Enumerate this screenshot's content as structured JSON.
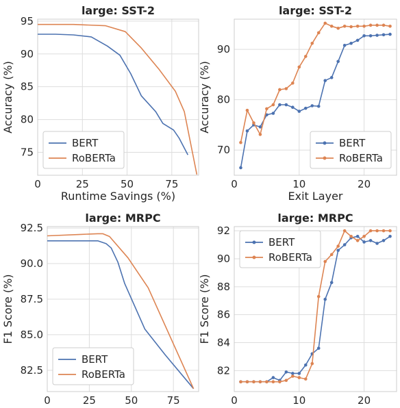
{
  "colors": {
    "bert": "#4c72b0",
    "roberta": "#dd8452",
    "grid": "#dddddd"
  },
  "chart_data": [
    {
      "id": "p1",
      "type": "line",
      "title": "large: SST-2",
      "xlabel": "Runtime Savings (%)",
      "ylabel": "Accuracy (%)",
      "xlim": [
        0,
        90
      ],
      "ylim": [
        71.5,
        95.3
      ],
      "xticks": [
        0,
        25,
        50,
        75
      ],
      "yticks": [
        75,
        80,
        85,
        90,
        95
      ],
      "markers": false,
      "legend": "lower-left",
      "series": [
        {
          "name": "BERT",
          "color": "#4c72b0",
          "x": [
            0,
            10,
            20,
            30,
            39,
            46,
            52,
            58,
            66,
            70,
            76,
            79,
            84
          ],
          "y": [
            93,
            93,
            92.9,
            92.6,
            91.2,
            89.8,
            87,
            83.6,
            81.2,
            79.4,
            78.4,
            77.2,
            74.6
          ]
        },
        {
          "name": "RoBERTa",
          "color": "#dd8452",
          "x": [
            0,
            20,
            38,
            49,
            58,
            68,
            77,
            82,
            89
          ],
          "y": [
            94.5,
            94.5,
            94.3,
            93.4,
            90.9,
            87.6,
            84.3,
            81.2,
            71.6
          ]
        }
      ]
    },
    {
      "id": "p2",
      "type": "line",
      "title": "large: SST-2",
      "xlabel": "Exit Layer",
      "ylabel": "Accuracy (%)",
      "xlim": [
        0,
        25
      ],
      "ylim": [
        65,
        96
      ],
      "xticks": [
        0,
        10,
        20
      ],
      "yticks": [
        70,
        80,
        90
      ],
      "markers": true,
      "legend": "lower-right",
      "series": [
        {
          "name": "BERT",
          "color": "#4c72b0",
          "x": [
            1,
            2,
            3,
            4,
            5,
            6,
            7,
            8,
            9,
            10,
            11,
            12,
            13,
            14,
            15,
            16,
            17,
            18,
            19,
            20,
            21,
            22,
            23,
            24
          ],
          "y": [
            66.5,
            73.8,
            75,
            74.6,
            77,
            77.3,
            79,
            79,
            78.5,
            77.7,
            78.3,
            78.8,
            78.7,
            83.8,
            84.4,
            87.6,
            90.8,
            91.2,
            91.8,
            92.7,
            92.7,
            92.8,
            92.9,
            93
          ]
        },
        {
          "name": "RoBERTa",
          "color": "#dd8452",
          "x": [
            1,
            2,
            3,
            4,
            5,
            6,
            7,
            8,
            9,
            10,
            11,
            12,
            13,
            14,
            15,
            16,
            17,
            18,
            19,
            20,
            21,
            22,
            23,
            24
          ],
          "y": [
            71.5,
            77.9,
            75.4,
            73.1,
            78.2,
            79,
            82,
            82.2,
            83.3,
            86.5,
            88.6,
            91.2,
            93.3,
            95.2,
            94.6,
            94.2,
            94.6,
            94.5,
            94.6,
            94.6,
            94.8,
            94.8,
            94.8,
            94.6
          ]
        }
      ]
    },
    {
      "id": "p3",
      "type": "line",
      "title": "large: MRPC",
      "xlabel": "Runtime Savings (%)",
      "ylabel": "F1 Score (%)",
      "xlim": [
        0,
        90
      ],
      "ylim": [
        81,
        92.6
      ],
      "xticks": [
        0,
        25,
        50,
        75
      ],
      "yticks": [
        82.5,
        85.0,
        87.5,
        90.0,
        92.5
      ],
      "ytick_labels": [
        "82.5",
        "85.0",
        "87.5",
        "90.0",
        "92.5"
      ],
      "markers": false,
      "legend": "lower-left",
      "series": [
        {
          "name": "BERT",
          "color": "#4c72b0",
          "x": [
            0,
            20,
            30,
            35,
            38,
            42,
            46,
            52,
            58,
            70,
            87
          ],
          "y": [
            91.6,
            91.6,
            91.6,
            91.4,
            91.1,
            90.1,
            88.6,
            87,
            85.4,
            83.6,
            81.2
          ]
        },
        {
          "name": "RoBERTa",
          "color": "#dd8452",
          "x": [
            0,
            20,
            30,
            33,
            37,
            48,
            60,
            87
          ],
          "y": [
            91.95,
            92.05,
            92.1,
            92.1,
            91.9,
            90.4,
            88.3,
            81.2
          ]
        }
      ]
    },
    {
      "id": "p4",
      "type": "line",
      "title": "large: MRPC",
      "xlabel": "Exit Layer",
      "ylabel": "F1 Score (%)",
      "xlim": [
        0,
        25
      ],
      "ylim": [
        80.5,
        92.3
      ],
      "xticks": [
        0,
        10,
        20
      ],
      "yticks": [
        82,
        84,
        86,
        88,
        90,
        92
      ],
      "markers": true,
      "legend": "upper-left",
      "series": [
        {
          "name": "BERT",
          "color": "#4c72b0",
          "x": [
            1,
            2,
            3,
            4,
            5,
            6,
            7,
            8,
            9,
            10,
            11,
            12,
            13,
            14,
            15,
            16,
            17,
            18,
            19,
            20,
            21,
            22,
            23,
            24
          ],
          "y": [
            81.2,
            81.2,
            81.2,
            81.2,
            81.2,
            81.5,
            81.3,
            81.9,
            81.8,
            81.8,
            82.4,
            83.2,
            83.6,
            87.1,
            88.3,
            90.6,
            91,
            91.5,
            91.6,
            91.2,
            91.3,
            91.1,
            91.3,
            91.6
          ]
        },
        {
          "name": "RoBERTa",
          "color": "#dd8452",
          "x": [
            1,
            2,
            3,
            4,
            5,
            6,
            7,
            8,
            9,
            10,
            11,
            12,
            13,
            14,
            15,
            16,
            17,
            18,
            19,
            20,
            21,
            22,
            23,
            24
          ],
          "y": [
            81.2,
            81.2,
            81.2,
            81.2,
            81.2,
            81.2,
            81.2,
            81.3,
            81.6,
            81.5,
            81.4,
            82.5,
            87.3,
            89.8,
            90.3,
            90.9,
            92,
            91.6,
            91.3,
            91.6,
            92,
            92,
            92,
            92
          ]
        }
      ]
    }
  ]
}
